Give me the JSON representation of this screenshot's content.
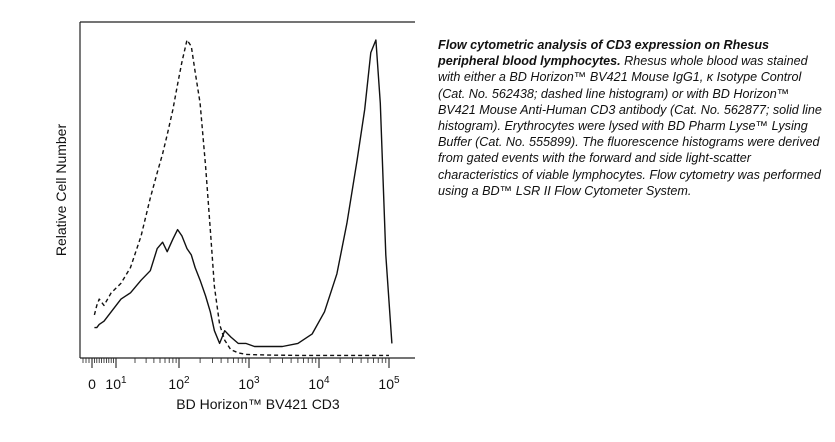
{
  "chart_data": {
    "type": "line",
    "xlabel": "BD Horizon™ BV421 CD3",
    "ylabel": "Relative Cell Number",
    "x_scale": "biexponential",
    "x_tick_labels": [
      {
        "base": "0",
        "exp": ""
      },
      {
        "base": "10",
        "exp": "1"
      },
      {
        "base": "10",
        "exp": "2"
      },
      {
        "base": "10",
        "exp": "3"
      },
      {
        "base": "10",
        "exp": "4"
      },
      {
        "base": "10",
        "exp": "5"
      }
    ],
    "grid": false,
    "series": [
      {
        "style": "dashed",
        "x": [
          1,
          2,
          3,
          5,
          8,
          12,
          17,
          25,
          35,
          45,
          55,
          65,
          80,
          95,
          110,
          130,
          150,
          170,
          200,
          240,
          280,
          320,
          380,
          450,
          550,
          700,
          900,
          1200,
          2000,
          5000,
          10000,
          50000,
          100000
        ],
        "y": [
          0.13,
          0.16,
          0.18,
          0.16,
          0.2,
          0.23,
          0.28,
          0.38,
          0.5,
          0.58,
          0.64,
          0.7,
          0.78,
          0.86,
          0.93,
          1.0,
          0.98,
          0.9,
          0.8,
          0.6,
          0.4,
          0.22,
          0.1,
          0.05,
          0.02,
          0.01,
          0.005,
          0.004,
          0.003,
          0.002,
          0.002,
          0.002,
          0.002
        ]
      },
      {
        "style": "solid",
        "x": [
          1,
          2,
          3,
          5,
          8,
          12,
          17,
          25,
          35,
          45,
          55,
          65,
          80,
          95,
          110,
          130,
          150,
          170,
          200,
          240,
          280,
          320,
          380,
          450,
          550,
          700,
          900,
          1200,
          2000,
          3000,
          5000,
          8000,
          12000,
          18000,
          25000,
          35000,
          45000,
          55000,
          65000,
          75000,
          90000,
          110000
        ],
        "y": [
          0.09,
          0.09,
          0.1,
          0.11,
          0.14,
          0.18,
          0.2,
          0.24,
          0.27,
          0.34,
          0.36,
          0.33,
          0.37,
          0.4,
          0.38,
          0.34,
          0.32,
          0.28,
          0.24,
          0.19,
          0.14,
          0.08,
          0.04,
          0.08,
          0.06,
          0.04,
          0.04,
          0.03,
          0.03,
          0.03,
          0.04,
          0.07,
          0.14,
          0.26,
          0.42,
          0.62,
          0.78,
          0.96,
          1.0,
          0.8,
          0.32,
          0.04
        ]
      }
    ]
  },
  "caption": {
    "lead": "Flow cytometric analysis of CD3 expression on Rhesus peripheral blood lymphocytes.",
    "body": " Rhesus whole blood was stained with either a BD Horizon™ BV421  Mouse IgG1, κ Isotype Control (Cat. No. 562438; dashed line histogram) or with BD Horizon™ BV421 Mouse Anti-Human CD3 antibody (Cat. No. 562877; solid line histogram). Erythrocytes were lysed with BD Pharm Lyse™ Lysing Buffer (Cat. No. 555899). The fluorescence histograms were derived from gated events with the forward and side light-scatter characteristics of viable lymphocytes. Flow cytometry was performed using a BD™ LSR II Flow Cytometer System."
  }
}
